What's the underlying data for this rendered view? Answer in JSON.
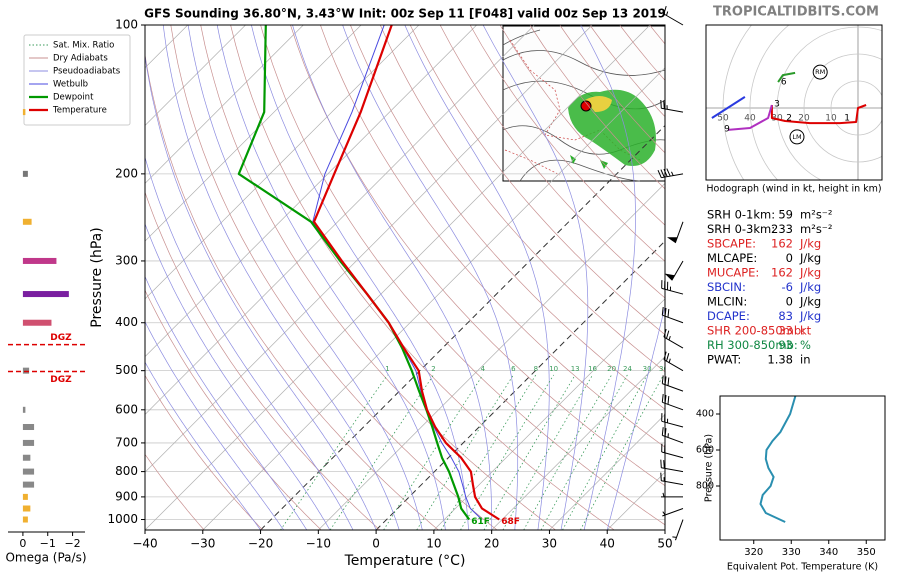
{
  "title": "GFS Sounding 36.80°N, 3.43°W Init: 00z Sep 11 [F048] valid 00z Sep 13 2019",
  "site": "TROPICALTIDBITS.COM",
  "chart_data": [
    {
      "type": "skewt",
      "xlabel": "Temperature (°C)",
      "ylabel": "Pressure (hPa)",
      "xlim": [
        -40,
        50
      ],
      "xticks": [
        {
          "value": -40,
          "label": "−40"
        },
        {
          "value": -30,
          "label": "−30"
        },
        {
          "value": -20,
          "label": "−20"
        },
        {
          "value": -10,
          "label": "−10"
        },
        0,
        10,
        20,
        30,
        40,
        50
      ],
      "ylim": [
        1050,
        100
      ],
      "yticks": [
        100,
        200,
        300,
        400,
        500,
        600,
        700,
        800,
        900,
        1000
      ],
      "log": true,
      "skew": true,
      "dashed_isotherms": [
        -20,
        0
      ],
      "background": [
        {
          "name": "Sat. Mix. Ratio",
          "color": "#3a9a5a",
          "style": "dotted"
        },
        {
          "name": "Dry Adiabats",
          "color": "#c89090",
          "style": "solid"
        },
        {
          "name": "Pseudoadiabats",
          "color": "#8c8ce0",
          "style": "solid"
        }
      ],
      "mixing_ratios": [
        1,
        2,
        4,
        6,
        8,
        10,
        13,
        16,
        20,
        24,
        30,
        36
      ],
      "pressure": [
        1000,
        950,
        900,
        850,
        800,
        750,
        700,
        650,
        600,
        550,
        500,
        450,
        400,
        350,
        300,
        250,
        200,
        150,
        100
      ],
      "series": [
        {
          "name": "Wetbulb",
          "color": "#4a4ae0",
          "values": [
            16.5,
            12.6,
            9.8,
            7.1,
            4.2,
            0.5,
            -3.7,
            -7.8,
            -12.05,
            -16.3,
            -20.7,
            -26.8,
            -33.7,
            -42.4,
            -52.6,
            -64.3,
            -70.5,
            -76.5,
            -86.0
          ]
        },
        {
          "name": "Dewpoint",
          "color": "#009900",
          "surface_label": "61F",
          "values": [
            14.3,
            11.0,
            8.5,
            5.6,
            2.5,
            -1.1,
            -4.5,
            -8.1,
            -12.1,
            -16.6,
            -21.4,
            -27.0,
            -33.7,
            -42.4,
            -52.8,
            -64.6,
            -85.4,
            -91.7,
            -106.5
          ]
        },
        {
          "name": "Temperature",
          "color": "#dd0000",
          "surface_label": "68F",
          "values": [
            19.5,
            14.6,
            11.4,
            8.9,
            6.3,
            2.2,
            -3.0,
            -7.6,
            -12.0,
            -16.1,
            -20.2,
            -26.7,
            -33.7,
            -42.4,
            -52.5,
            -64.1,
            -68.9,
            -75.0,
            -84.7
          ]
        }
      ],
      "winds": {
        "speed": [
          5,
          5,
          5,
          15,
          20,
          20,
          25,
          25,
          30,
          30,
          25,
          25,
          30,
          35,
          50,
          50,
          45,
          25,
          15
        ],
        "direction": [
          200,
          250,
          270,
          280,
          280,
          285,
          290,
          285,
          290,
          290,
          300,
          300,
          290,
          285,
          210,
          200,
          260,
          280,
          300
        ]
      }
    },
    {
      "type": "barh",
      "xlabel": "Omega (Pa/s)",
      "xlim": [
        0.6,
        -2.5
      ],
      "xticks": [
        0,
        {
          "value": -1,
          "label": "−1"
        },
        {
          "value": -2,
          "label": "−2"
        }
      ],
      "pressure": [
        150,
        200,
        250,
        300,
        350,
        400,
        500,
        600,
        650,
        700,
        750,
        800,
        850,
        900,
        950,
        1000
      ],
      "values": [
        -0.1,
        -0.2,
        -0.35,
        -1.35,
        -1.85,
        -1.15,
        -0.25,
        -0.1,
        -0.45,
        -0.45,
        -0.3,
        -0.45,
        -0.45,
        -0.2,
        -0.3,
        -0.2
      ],
      "colors": [
        "#f0b030",
        "#777777",
        "#f0b030",
        "#c0388a",
        "#7a1fa0",
        "#d05070",
        "#888888",
        "#888888",
        "#888888",
        "#888888",
        "#888888",
        "#888888",
        "#888888",
        "#f0b030",
        "#f0b030",
        "#f0b030"
      ],
      "dgz": [
        {
          "label": "DGZ",
          "pressure": 443
        },
        {
          "label": "DGZ",
          "pressure": 502
        }
      ]
    },
    {
      "type": "hodograph",
      "title": "Hodograph (wind in kt, height in km)",
      "rings": [
        10,
        20,
        30,
        40,
        50
      ],
      "series": [
        {
          "color": "#dd0000",
          "u": [
            3,
            0,
            -0.7,
            -6.7,
            -17.8,
            -27,
            -31.9,
            -31.9
          ],
          "v": [
            1.1,
            0,
            -5.2,
            -5.6,
            -5.6,
            -4.8,
            -3.7,
            1.1
          ]
        },
        {
          "color": "#b030c0",
          "u": [
            -31.9,
            -33.3,
            -40,
            -48.1
          ],
          "v": [
            1.1,
            -3.7,
            -7.4,
            -8.1
          ]
        },
        {
          "color": "#2a9a2a",
          "u": [
            -29.6,
            -27.8,
            -23.3
          ],
          "v": [
            9.6,
            12.2,
            13.0
          ]
        },
        {
          "color": "#2a3ae0",
          "u": [
            -54.1,
            -41.9
          ],
          "v": [
            -3.7,
            4.1
          ]
        }
      ],
      "height_points": [
        {
          "label": "1",
          "u": -5.5,
          "v": -3.7
        },
        {
          "label": "2",
          "u": -27,
          "v": -3.7
        },
        {
          "label": "3",
          "u": -31.5,
          "v": 1.5
        },
        {
          "label": "6",
          "u": -29,
          "v": 9.6
        },
        {
          "label": "9",
          "u": -50,
          "v": -7.8
        }
      ],
      "motion": [
        {
          "label": "RM",
          "u": -14,
          "v": 13.3
        },
        {
          "label": "LM",
          "u": -22.6,
          "v": -10.7
        }
      ]
    },
    {
      "type": "line",
      "xlabel": "Equivalent Pot. Temperature (K)",
      "ylabel": "Pressure (hPa)",
      "color": "#2a8fb0",
      "xlim": [
        311,
        355
      ],
      "xticks": [
        320,
        330,
        340,
        350
      ],
      "ylim": [
        1100,
        300
      ],
      "yticks": [
        400,
        600,
        800
      ],
      "pressure": [
        300,
        400,
        500,
        550,
        600,
        650,
        700,
        750,
        800,
        850,
        900,
        950,
        1000
      ],
      "values": [
        331.1,
        329.7,
        327.1,
        325.0,
        323.4,
        323.2,
        323.9,
        325.3,
        324.5,
        322.4,
        321.8,
        323.2,
        328.4
      ]
    }
  ],
  "indices": {
    "rows": [
      {
        "label": "SRH 0-1km:",
        "value": 59,
        "unit": "m²s⁻²",
        "color": "#000000"
      },
      {
        "label": "SRH 0-3km:",
        "value": 233,
        "unit": "m²s⁻²",
        "color": "#000000"
      },
      {
        "label": "SBCAPE:",
        "value": 162,
        "unit": "J/kg",
        "color": "#dd2222"
      },
      {
        "label": "MLCAPE:",
        "value": 0,
        "unit": "J/kg",
        "color": "#000000"
      },
      {
        "label": "MUCAPE:",
        "value": 162,
        "unit": "J/kg",
        "color": "#dd2222"
      },
      {
        "label": "SBCIN:",
        "value": -6,
        "unit": "J/kg",
        "color": "#2233cc"
      },
      {
        "label": "MLCIN:",
        "value": 0,
        "unit": "J/kg",
        "color": "#000000"
      },
      {
        "label": "DCAPE:",
        "value": 83,
        "unit": "J/kg",
        "color": "#2233cc"
      },
      {
        "label": "SHR 200-850mb:",
        "value": 33,
        "unit": "kt",
        "color": "#dd2222"
      },
      {
        "label": "RH 300-850mb:",
        "value": 93,
        "unit": "%",
        "color": "#118844"
      },
      {
        "label": "PWAT:",
        "value": 1.38,
        "unit": "in",
        "color": "#000000"
      }
    ]
  }
}
